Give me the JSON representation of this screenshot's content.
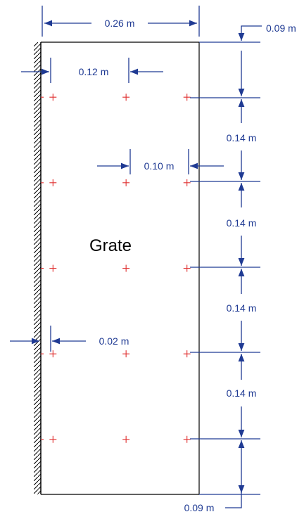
{
  "colors": {
    "dimension": "#1f3a93",
    "outline": "#000000",
    "marker": "#e03030",
    "wall_hatch": "#000000",
    "background": "#ffffff"
  },
  "diagram": {
    "region_label": "Grate",
    "dimensions": {
      "overall_width": "0.26 m",
      "column_spacing": "0.12 m",
      "right_gap": "0.10 m",
      "wall_offset": "0.02 m",
      "top_margin": "0.09 m",
      "row_spacing_1": "0.14 m",
      "row_spacing_2": "0.14 m",
      "row_spacing_3": "0.14 m",
      "row_spacing_4": "0.14 m",
      "bottom_margin": "0.09 m"
    },
    "grid": {
      "columns_m": [
        0.02,
        0.14,
        0.24
      ],
      "rows_m": [
        0.09,
        0.23,
        0.37,
        0.51,
        0.65
      ],
      "marker_symbol": "+"
    }
  }
}
